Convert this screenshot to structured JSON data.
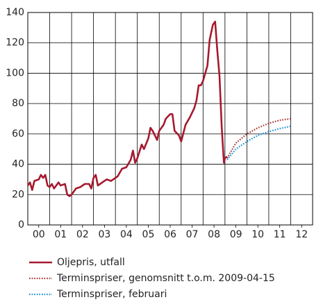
{
  "chart_data": {
    "type": "line",
    "xlim": [
      2000,
      2013
    ],
    "xticks": [
      {
        "value": 2000.5,
        "label": "00"
      },
      {
        "value": 2001.5,
        "label": "01"
      },
      {
        "value": 2002.5,
        "label": "02"
      },
      {
        "value": 2003.5,
        "label": "03"
      },
      {
        "value": 2004.5,
        "label": "04"
      },
      {
        "value": 2005.5,
        "label": "05"
      },
      {
        "value": 2006.5,
        "label": "06"
      },
      {
        "value": 2007.5,
        "label": "07"
      },
      {
        "value": 2008.5,
        "label": "08"
      },
      {
        "value": 2009.5,
        "label": "09"
      },
      {
        "value": 2010.5,
        "label": "10"
      },
      {
        "value": 2011.5,
        "label": "11"
      },
      {
        "value": 2012.5,
        "label": "12"
      }
    ],
    "xgrid": [
      2001,
      2002,
      2003,
      2004,
      2005,
      2006,
      2007,
      2008,
      2009,
      2010,
      2011,
      2012
    ],
    "ylim": [
      0,
      140
    ],
    "yticks": [
      0,
      20,
      40,
      60,
      80,
      100,
      120,
      140
    ],
    "grid": true,
    "legend": "bottom",
    "series": [
      {
        "name": "Oljepris, utfall",
        "color": "#a6192e",
        "style": "solid",
        "x": [
          2000.0,
          2000.1,
          2000.2,
          2000.3,
          2000.5,
          2000.6,
          2000.7,
          2000.8,
          2000.9,
          2001.0,
          2001.1,
          2001.2,
          2001.4,
          2001.5,
          2001.7,
          2001.8,
          2001.9,
          2002.0,
          2002.2,
          2002.4,
          2002.6,
          2002.8,
          2002.9,
          2003.0,
          2003.1,
          2003.2,
          2003.4,
          2003.6,
          2003.8,
          2003.9,
          2004.1,
          2004.3,
          2004.5,
          2004.7,
          2004.8,
          2004.9,
          2005.0,
          2005.2,
          2005.3,
          2005.5,
          2005.6,
          2005.7,
          2005.9,
          2006.0,
          2006.2,
          2006.3,
          2006.5,
          2006.6,
          2006.7,
          2006.9,
          2007.0,
          2007.2,
          2007.4,
          2007.5,
          2007.6,
          2007.7,
          2007.8,
          2007.9,
          2008.0,
          2008.2,
          2008.3,
          2008.45,
          2008.55,
          2008.65,
          2008.75,
          2008.85,
          2008.95,
          2009.0,
          2009.1
        ],
        "values": [
          26,
          28,
          23,
          29,
          30,
          33,
          31,
          33,
          26,
          25,
          27,
          24,
          28,
          26,
          27,
          20,
          19,
          20,
          24,
          25,
          27,
          27,
          24,
          31,
          33,
          26,
          28,
          30,
          29,
          30,
          32,
          37,
          38,
          43,
          49,
          41,
          44,
          53,
          50,
          57,
          64,
          62,
          56,
          62,
          66,
          70,
          73,
          73,
          62,
          59,
          55,
          66,
          71,
          74,
          77,
          82,
          92,
          92,
          95,
          105,
          122,
          132,
          134,
          115,
          98,
          65,
          41,
          44,
          45
        ]
      },
      {
        "name": "Terminspriser, genomsnitt t.o.m. 2009-04-15",
        "color": "#a83232",
        "style": "dotted",
        "x": [
          2009.1,
          2009.5,
          2010.0,
          2010.5,
          2011.0,
          2011.5,
          2012.0
        ],
        "values": [
          44,
          54,
          60,
          64,
          67,
          69,
          70
        ]
      },
      {
        "name": "Terminspriser, februari",
        "color": "#1c8fcf",
        "style": "dotted",
        "x": [
          2009.1,
          2009.5,
          2010.0,
          2010.5,
          2011.0,
          2011.5,
          2012.0
        ],
        "values": [
          43,
          50,
          55,
          59,
          61.5,
          63.5,
          65
        ]
      }
    ]
  }
}
